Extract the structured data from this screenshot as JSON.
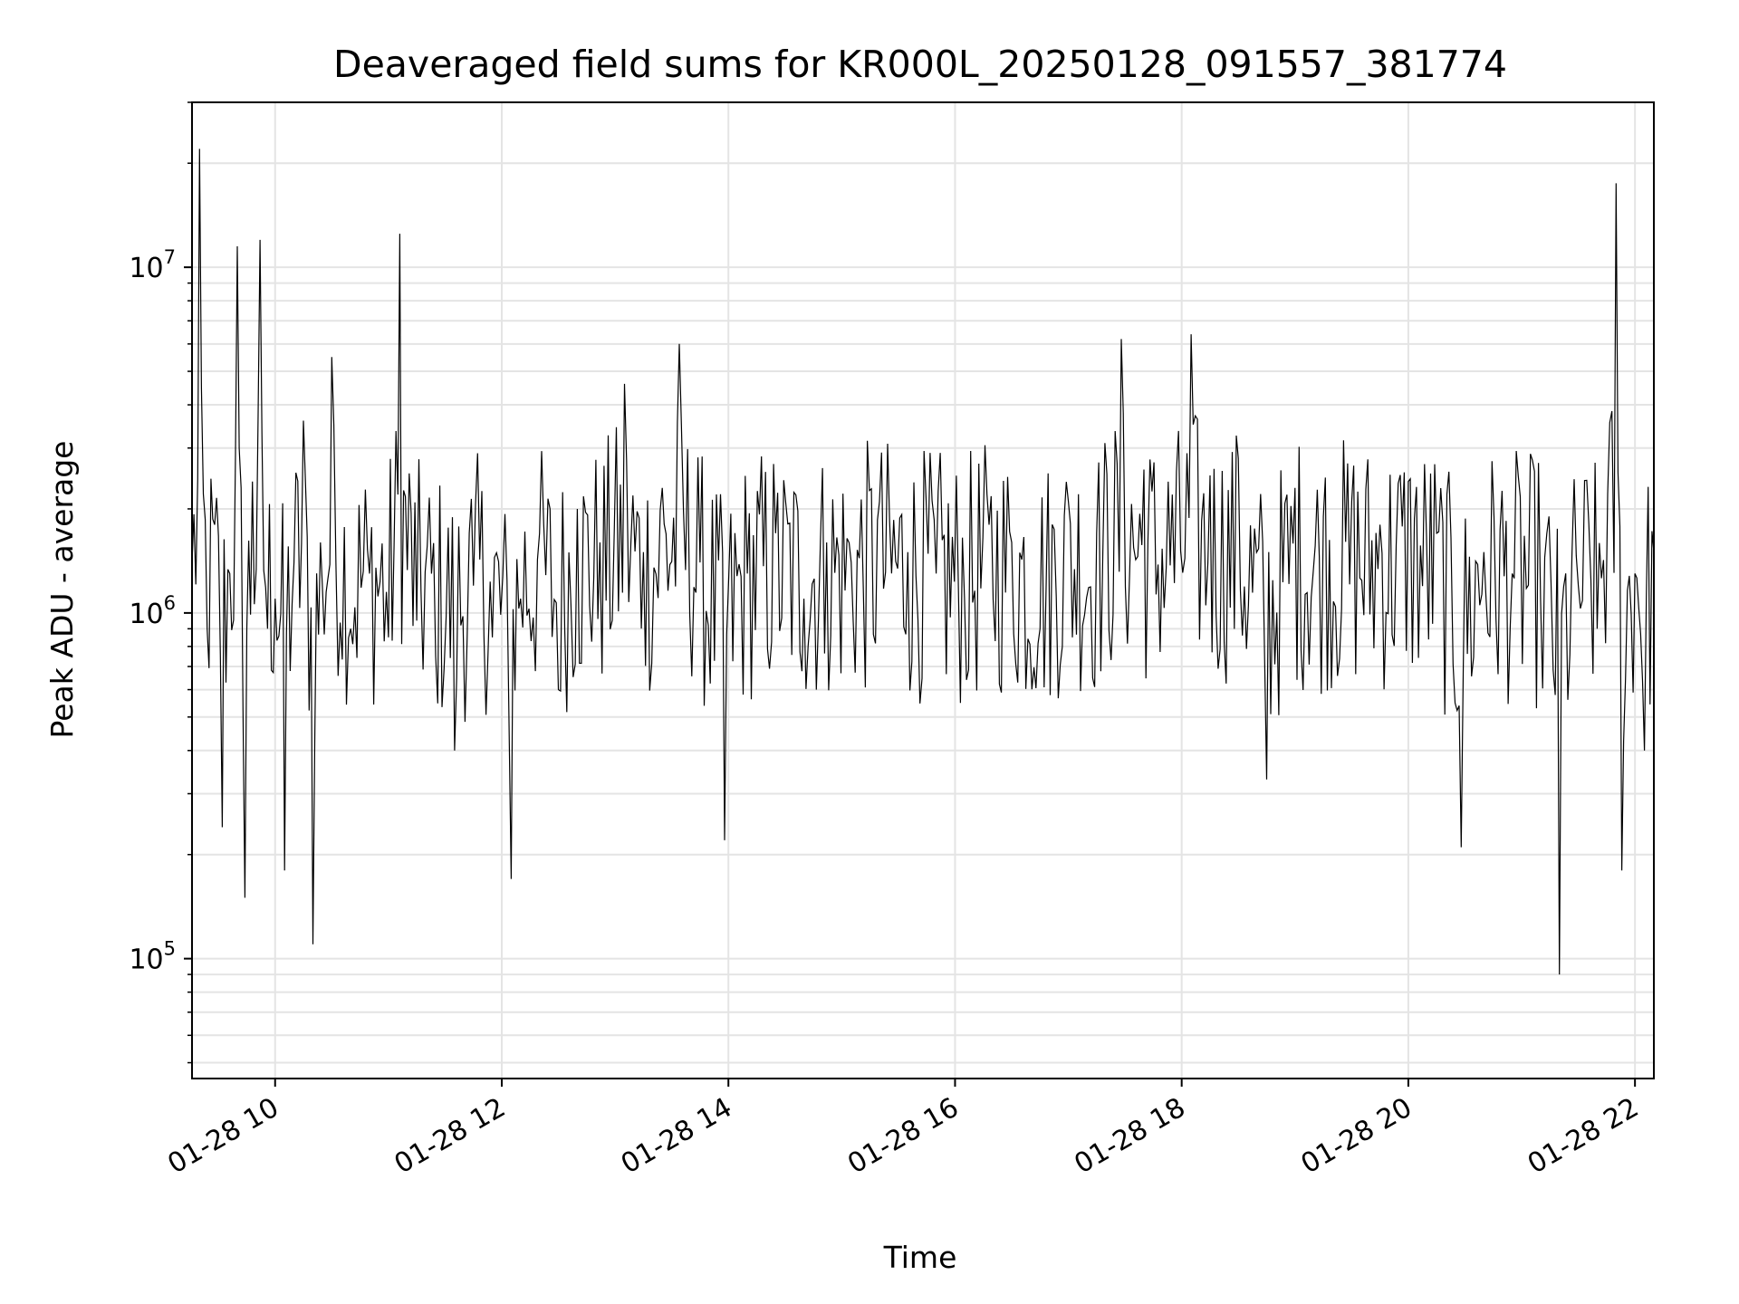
{
  "chart_data": {
    "type": "line",
    "title": "Deaveraged field sums for KR000L_20250128_091557_381774",
    "xlabel": "Time",
    "ylabel": "Peak ADU - average",
    "yscale": "log",
    "grid": true,
    "ylim": [
      45000,
      30000000
    ],
    "xlim": [
      "2025-01-28T09:16",
      "2025-01-28T22:10"
    ],
    "x_ticks": [
      {
        "value": "2025-01-28T10:00",
        "label": "01-28 10"
      },
      {
        "value": "2025-01-28T12:00",
        "label": "01-28 12"
      },
      {
        "value": "2025-01-28T14:00",
        "label": "01-28 14"
      },
      {
        "value": "2025-01-28T16:00",
        "label": "01-28 16"
      },
      {
        "value": "2025-01-28T18:00",
        "label": "01-28 18"
      },
      {
        "value": "2025-01-28T20:00",
        "label": "01-28 20"
      },
      {
        "value": "2025-01-28T22:00",
        "label": "01-28 22"
      }
    ],
    "y_ticks": [
      {
        "value": 100000,
        "base": "10",
        "exp": "5"
      },
      {
        "value": 1000000,
        "base": "10",
        "exp": "6"
      },
      {
        "value": 10000000,
        "base": "10",
        "exp": "7"
      }
    ],
    "series": [
      {
        "color": "#000000",
        "x": [
          "2025-01-28T09:16",
          "2025-01-28T09:20",
          "2025-01-28T09:24",
          "2025-01-28T09:28",
          "2025-01-28T09:32",
          "2025-01-28T09:36",
          "2025-01-28T09:40",
          "2025-01-28T09:44",
          "2025-01-28T09:48",
          "2025-01-28T09:52",
          "2025-01-28T09:56",
          "2025-01-28T10:00",
          "2025-01-28T10:05",
          "2025-01-28T10:10",
          "2025-01-28T10:15",
          "2025-01-28T10:20",
          "2025-01-28T10:25",
          "2025-01-28T10:30",
          "2025-01-28T10:40",
          "2025-01-28T10:50",
          "2025-01-28T11:00",
          "2025-01-28T11:06",
          "2025-01-28T11:15",
          "2025-01-28T11:25",
          "2025-01-28T11:35",
          "2025-01-28T11:45",
          "2025-01-28T11:55",
          "2025-01-28T12:05",
          "2025-01-28T12:10",
          "2025-01-28T12:20",
          "2025-01-28T12:30",
          "2025-01-28T12:40",
          "2025-01-28T12:52",
          "2025-01-28T13:05",
          "2025-01-28T13:15",
          "2025-01-28T13:25",
          "2025-01-28T13:34",
          "2025-01-28T13:45",
          "2025-01-28T13:58",
          "2025-01-28T14:10",
          "2025-01-28T14:25",
          "2025-01-28T14:40",
          "2025-01-28T14:52",
          "2025-01-28T15:05",
          "2025-01-28T15:20",
          "2025-01-28T15:35",
          "2025-01-28T15:50",
          "2025-01-28T16:05",
          "2025-01-28T16:18",
          "2025-01-28T16:30",
          "2025-01-28T16:45",
          "2025-01-28T17:00",
          "2025-01-28T17:15",
          "2025-01-28T17:28",
          "2025-01-28T17:40",
          "2025-01-28T17:55",
          "2025-01-28T18:05",
          "2025-01-28T18:15",
          "2025-01-28T18:30",
          "2025-01-28T18:45",
          "2025-01-28T19:00",
          "2025-01-28T19:15",
          "2025-01-28T19:30",
          "2025-01-28T19:45",
          "2025-01-28T20:00",
          "2025-01-28T20:15",
          "2025-01-28T20:28",
          "2025-01-28T20:40",
          "2025-01-28T20:55",
          "2025-01-28T21:10",
          "2025-01-28T21:20",
          "2025-01-28T21:30",
          "2025-01-28T21:40",
          "2025-01-28T21:50",
          "2025-01-28T21:53",
          "2025-01-28T22:00",
          "2025-01-28T22:05",
          "2025-01-28T22:10"
        ],
        "y": [
          1400000,
          22000000,
          900000,
          1800000,
          240000,
          1300000,
          11500000,
          150000,
          2400000,
          12000000,
          900000,
          1100000,
          180000,
          1400000,
          3600000,
          110000,
          1200000,
          5500000,
          900000,
          1300000,
          850000,
          12500000,
          950000,
          750000,
          400000,
          1200000,
          850000,
          170000,
          1100000,
          1700000,
          600000,
          2000000,
          1600000,
          4600000,
          1500000,
          2300000,
          6000000,
          1400000,
          220000,
          1300000,
          1700000,
          1100000,
          1600000,
          1400000,
          2100000,
          1500000,
          1300000,
          1100000,
          1800000,
          1600000,
          900000,
          2100000,
          1700000,
          6200000,
          2600000,
          2200000,
          6400000,
          2500000,
          2800000,
          330000,
          2300000,
          1900000,
          2100000,
          1800000,
          2400000,
          1700000,
          210000,
          1500000,
          1300000,
          1100000,
          90000,
          1200000,
          900000,
          17500000,
          180000,
          1300000,
          400000,
          1500000
        ]
      }
    ]
  }
}
